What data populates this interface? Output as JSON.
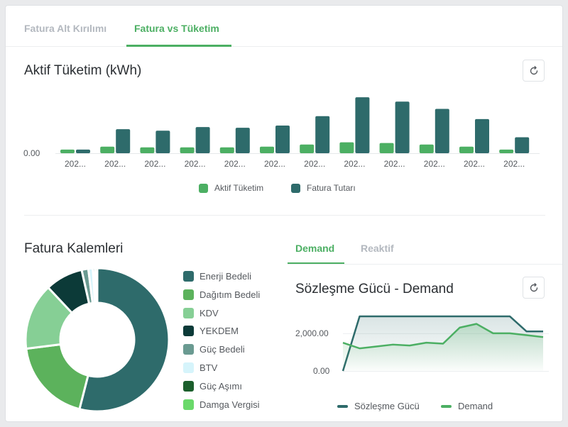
{
  "tabs": [
    {
      "label": "Fatura Alt Kırılımı",
      "active": false
    },
    {
      "label": "Fatura vs Tüketim",
      "active": true
    }
  ],
  "consumption_chart": {
    "title": "Aktif Tüketim (kWh)",
    "y_tick": "0.00",
    "x_ticks": [
      "202...",
      "202...",
      "202...",
      "202...",
      "202...",
      "202...",
      "202...",
      "202...",
      "202...",
      "202...",
      "202...",
      "202..."
    ],
    "legend": [
      "Aktif Tüketim",
      "Fatura Tutarı"
    ],
    "refresh_icon": "refresh-icon",
    "colors": {
      "aktif": "#4caf63",
      "fatura": "#2e6b6b"
    }
  },
  "chart_data": [
    {
      "type": "bar",
      "title": "Aktif Tüketim (kWh)",
      "categories": [
        "202...",
        "202...",
        "202...",
        "202...",
        "202...",
        "202...",
        "202...",
        "202...",
        "202...",
        "202...",
        "202...",
        "202..."
      ],
      "series": [
        {
          "name": "Aktif Tüketim",
          "values": [
            5,
            9,
            8,
            8,
            8,
            9,
            12,
            15,
            14,
            12,
            9,
            5
          ]
        },
        {
          "name": "Fatura Tutarı",
          "values": [
            5,
            33,
            31,
            36,
            35,
            38,
            51,
            77,
            71,
            61,
            47,
            22
          ]
        }
      ],
      "ylim": [
        0,
        80
      ]
    },
    {
      "type": "pie",
      "title": "Fatura Kalemleri",
      "categories": [
        "Enerji Bedeli",
        "Dağıtım Bedeli",
        "KDV",
        "YEKDEM",
        "Güç Bedeli",
        "BTV",
        "Güç Aşımı",
        "Damga Vergisi"
      ],
      "values": [
        54,
        19,
        15,
        8.5,
        1.5,
        1,
        0.5,
        0.5
      ]
    },
    {
      "type": "line",
      "title": "Sözleşme Gücü - Demand",
      "x": [
        0,
        1,
        2,
        3,
        4,
        5,
        6,
        7,
        8,
        9,
        10,
        11,
        12
      ],
      "series": [
        {
          "name": "Sözleşme Gücü",
          "values": [
            0,
            2900,
            2900,
            2900,
            2900,
            2900,
            2900,
            2900,
            2900,
            2900,
            2900,
            2100,
            2100
          ]
        },
        {
          "name": "Demand",
          "values": [
            1500,
            1200,
            1300,
            1400,
            1350,
            1500,
            1450,
            2300,
            2500,
            2000,
            2000,
            1900,
            1800
          ]
        }
      ],
      "yticks": [
        "0.00",
        "2,000.00"
      ],
      "ylim": [
        0,
        3200
      ]
    }
  ],
  "donut": {
    "title": "Fatura Kalemleri",
    "items": [
      {
        "label": "Enerji Bedeli",
        "color": "#2e6b6b"
      },
      {
        "label": "Dağıtım Bedeli",
        "color": "#5cb25c"
      },
      {
        "label": "KDV",
        "color": "#86cf95"
      },
      {
        "label": "YEKDEM",
        "color": "#0c3a38"
      },
      {
        "label": "Güç Bedeli",
        "color": "#6a9a91"
      },
      {
        "label": "BTV",
        "color": "#d6f4fb"
      },
      {
        "label": "Güç Aşımı",
        "color": "#1b5e2c"
      },
      {
        "label": "Damga Vergisi",
        "color": "#6ad96a"
      }
    ]
  },
  "demand_panel": {
    "tabs": [
      {
        "label": "Demand",
        "active": true
      },
      {
        "label": "Reaktif",
        "active": false
      }
    ],
    "title": "Sözleşme Gücü - Demand",
    "y_ticks": [
      "2,000.00",
      "0.00"
    ],
    "legend": [
      "Sözleşme Gücü",
      "Demand"
    ],
    "refresh_icon": "refresh-icon"
  }
}
